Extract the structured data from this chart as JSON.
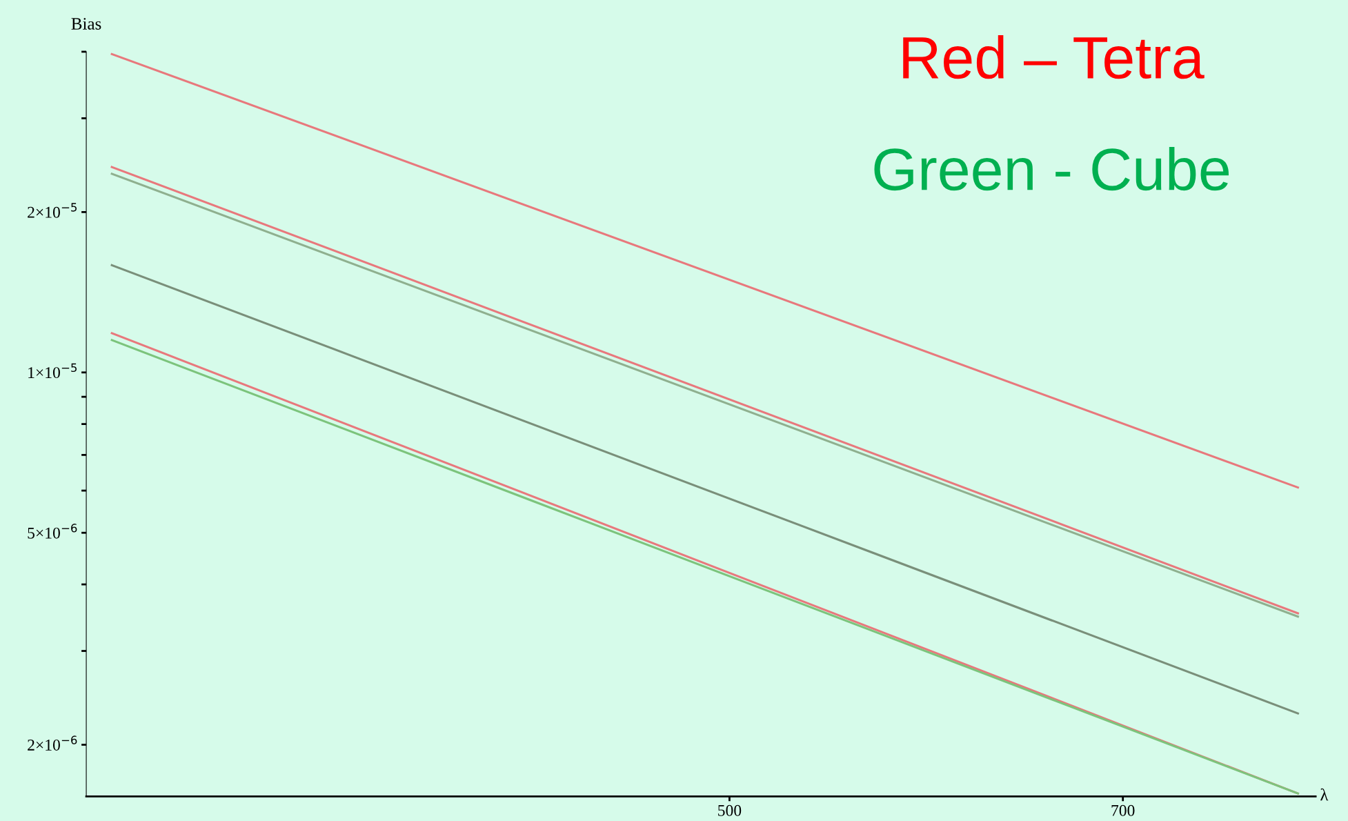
{
  "chart_data": {
    "type": "line",
    "xlabel": "λ",
    "ylabel": "Bias",
    "annotations": [
      "Red – Tetra",
      "Green - Cube"
    ],
    "log": "y",
    "grid": false,
    "legend": false,
    "xlim": [
      173,
      798
    ],
    "xticks": [
      500,
      700
    ],
    "ylim": [
      1.6e-06,
      4e-05
    ],
    "x": [
      186,
      789
    ],
    "yticks": [
      {
        "value": 4e-05,
        "label": null
      },
      {
        "value": 3e-05,
        "label": null
      },
      {
        "value": 2e-05,
        "label": "2×10$^{−5}$"
      },
      {
        "value": 1e-05,
        "label": "1×10$^{−5}$"
      },
      {
        "value": 9e-06,
        "label": null
      },
      {
        "value": 8e-06,
        "label": null
      },
      {
        "value": 7e-06,
        "label": null
      },
      {
        "value": 6e-06,
        "label": null
      },
      {
        "value": 5e-06,
        "label": "5×10$^{−6}$"
      },
      {
        "value": 4e-06,
        "label": null
      },
      {
        "value": 3e-06,
        "label": null
      },
      {
        "value": 2e-06,
        "label": "2×10$^{−6}$"
      }
    ],
    "series": [
      {
        "color": "#e8787c",
        "values": [
          3.96e-05,
          6.08e-06
        ]
      },
      {
        "color": "#e8787c",
        "values": [
          2.43e-05,
          3.53e-06
        ]
      },
      {
        "color": "#8fb08f",
        "values": [
          2.36e-05,
          3.48e-06
        ]
      },
      {
        "color": "#7a8f7a",
        "values": [
          1.59e-05,
          2.29e-06
        ]
      },
      {
        "color": "#e8787c",
        "values": [
          1.185e-05,
          1.62e-06
        ]
      },
      {
        "color": "#7cc47c",
        "values": [
          1.15e-05,
          1.62e-06
        ]
      }
    ]
  }
}
